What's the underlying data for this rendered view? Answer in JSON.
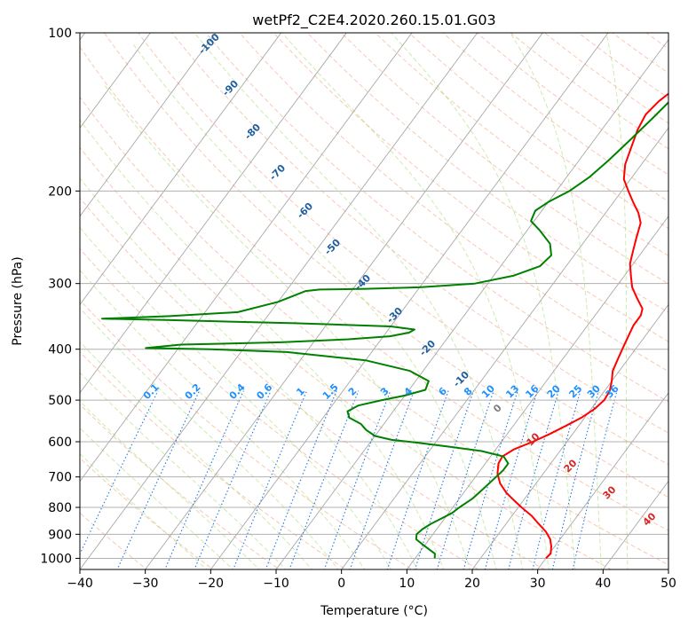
{
  "chart_data": {
    "type": "line",
    "title": "wetPf2_C2E4.2020.260.15.01.G03",
    "xlabel": "Temperature (°C)",
    "ylabel": "Pressure (hPa)",
    "xlim": [
      -40,
      50
    ],
    "ylim": [
      1050,
      100
    ],
    "yscale": "log",
    "grid": true,
    "x_ticks": [
      -40,
      -30,
      -20,
      -10,
      0,
      10,
      20,
      30,
      40,
      50
    ],
    "y_ticks": [
      100,
      200,
      300,
      400,
      500,
      600,
      700,
      800,
      900,
      1000
    ],
    "series": [
      {
        "color": "#ff0000",
        "points": [
          [
            30.0,
            1000
          ],
          [
            30.2,
            980
          ],
          [
            29.5,
            950
          ],
          [
            28.5,
            920
          ],
          [
            27.0,
            890
          ],
          [
            25.0,
            860
          ],
          [
            23.0,
            830
          ],
          [
            20.5,
            800
          ],
          [
            18.5,
            775
          ],
          [
            16.5,
            750
          ],
          [
            14.5,
            720
          ],
          [
            13.0,
            690
          ],
          [
            12.0,
            660
          ],
          [
            11.8,
            640
          ],
          [
            12.8,
            620
          ],
          [
            14.8,
            600
          ],
          [
            16.5,
            580
          ],
          [
            18.0,
            560
          ],
          [
            19.5,
            540
          ],
          [
            20.5,
            520
          ],
          [
            21.0,
            500
          ],
          [
            20.8,
            480
          ],
          [
            20.0,
            460
          ],
          [
            19.0,
            440
          ],
          [
            18.5,
            420
          ],
          [
            18.0,
            400
          ],
          [
            17.5,
            380
          ],
          [
            17.0,
            360
          ],
          [
            17.0,
            345
          ],
          [
            16.5,
            335
          ],
          [
            14.5,
            320
          ],
          [
            12.5,
            305
          ],
          [
            11.0,
            290
          ],
          [
            9.5,
            275
          ],
          [
            8.5,
            260
          ],
          [
            7.5,
            245
          ],
          [
            6.5,
            230
          ],
          [
            5.0,
            220
          ],
          [
            3.0,
            210
          ],
          [
            1.0,
            200
          ],
          [
            -1.0,
            190
          ],
          [
            -2.5,
            178
          ],
          [
            -3.5,
            165
          ],
          [
            -4.5,
            153
          ],
          [
            -5.0,
            143
          ],
          [
            -4.5,
            135
          ],
          [
            -3.5,
            128
          ],
          [
            -2.5,
            122
          ],
          [
            -2.0,
            115
          ],
          [
            -1.8,
            108
          ],
          [
            -1.5,
            103
          ],
          [
            -1.3,
            100
          ]
        ]
      },
      {
        "color": "#008000",
        "points": [
          [
            13.0,
            1000
          ],
          [
            12.5,
            980
          ],
          [
            11.0,
            960
          ],
          [
            9.5,
            940
          ],
          [
            8.0,
            920
          ],
          [
            7.5,
            900
          ],
          [
            7.8,
            880
          ],
          [
            8.5,
            860
          ],
          [
            9.5,
            840
          ],
          [
            10.5,
            820
          ],
          [
            11.0,
            800
          ],
          [
            12.0,
            770
          ],
          [
            12.5,
            740
          ],
          [
            13.0,
            710
          ],
          [
            13.5,
            680
          ],
          [
            13.5,
            660
          ],
          [
            12.0,
            640
          ],
          [
            8.0,
            625
          ],
          [
            2.0,
            612
          ],
          [
            -3.0,
            602
          ],
          [
            -7.0,
            595
          ],
          [
            -10.0,
            585
          ],
          [
            -12.0,
            570
          ],
          [
            -13.5,
            555
          ],
          [
            -16.0,
            540
          ],
          [
            -17.0,
            525
          ],
          [
            -16.0,
            512
          ],
          [
            -13.0,
            500
          ],
          [
            -10.0,
            490
          ],
          [
            -7.5,
            478
          ],
          [
            -8.0,
            460
          ],
          [
            -12.0,
            440
          ],
          [
            -20.0,
            420
          ],
          [
            -33.0,
            405
          ],
          [
            -45.0,
            400
          ],
          [
            -55.0,
            398
          ],
          [
            -50.0,
            392
          ],
          [
            -35.0,
            388
          ],
          [
            -25.0,
            383
          ],
          [
            -19.0,
            378
          ],
          [
            -16.5,
            372
          ],
          [
            -16.0,
            367
          ],
          [
            -20.0,
            362
          ],
          [
            -35.0,
            357
          ],
          [
            -55.0,
            352
          ],
          [
            -65.0,
            350
          ],
          [
            -55.0,
            346
          ],
          [
            -45.0,
            340
          ],
          [
            -40.0,
            325
          ],
          [
            -37.0,
            310
          ],
          [
            -35.0,
            308
          ],
          [
            -28.0,
            307
          ],
          [
            -20.0,
            305
          ],
          [
            -12.0,
            300
          ],
          [
            -7.0,
            290
          ],
          [
            -4.0,
            278
          ],
          [
            -3.5,
            265
          ],
          [
            -5.0,
            252
          ],
          [
            -8.0,
            238
          ],
          [
            -10.5,
            228
          ],
          [
            -11.0,
            218
          ],
          [
            -10.0,
            210
          ],
          [
            -8.0,
            200
          ],
          [
            -6.5,
            188
          ],
          [
            -5.5,
            175
          ],
          [
            -4.5,
            160
          ],
          [
            -3.5,
            145
          ],
          [
            -2.5,
            130
          ],
          [
            -1.5,
            118
          ],
          [
            0.0,
            110
          ],
          [
            0.5,
            104
          ],
          [
            1.0,
            100
          ]
        ]
      }
    ],
    "dry_adiabat_labels": [
      "-100",
      "-90",
      "-80",
      "-70",
      "-60",
      "-50",
      "-40",
      "-30",
      "-20",
      "-10"
    ],
    "mixing_ratio_labels": [
      "0.1",
      "0.2",
      "0.4",
      "0.6",
      "1",
      "1.5",
      "2",
      "3",
      "4",
      "6",
      "8",
      "10",
      "13",
      "16",
      "20",
      "25",
      "30",
      "36"
    ],
    "moist_adiabat_labels": [
      "0",
      "10",
      "20",
      "30",
      "40"
    ],
    "colors": {
      "temperature": "#ff0000",
      "dewpoint": "#008000",
      "isotherm": "#999999",
      "dry_adiabat": "#f4a582",
      "moist_adiabat": "#a6d96a",
      "mixing_ratio": "#1f78e4",
      "dry_label": "#1f5f9f",
      "mixing_label": "#1e90ff",
      "moist_label": "#d62728",
      "zero_label": "#7f7f7f"
    }
  }
}
